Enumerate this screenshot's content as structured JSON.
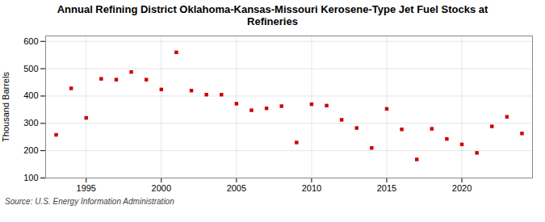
{
  "chart_data": {
    "type": "scatter",
    "title": "Annual Refining District Oklahoma-Kansas-Missouri Kerosene-Type Jet Fuel Stocks at\nRefineries",
    "ylabel": "Thousand Barrels",
    "caption": "Source: U.S. Energy Information Administration",
    "x": [
      1993,
      1994,
      1995,
      1996,
      1997,
      1998,
      1999,
      2000,
      2001,
      2002,
      2003,
      2004,
      2005,
      2006,
      2007,
      2008,
      2009,
      2010,
      2011,
      2012,
      2013,
      2014,
      2015,
      2016,
      2017,
      2018,
      2019,
      2020,
      2021,
      2022,
      2023,
      2024
    ],
    "values": [
      258,
      428,
      320,
      463,
      460,
      488,
      460,
      424,
      560,
      420,
      405,
      405,
      372,
      348,
      355,
      363,
      230,
      370,
      365,
      313,
      283,
      210,
      353,
      278,
      168,
      280,
      243,
      223,
      192,
      289,
      324,
      263
    ],
    "color": "#cc0000",
    "marker": "square",
    "xlim": [
      1992.3,
      2024.7
    ],
    "xticks": [
      1995,
      2000,
      2005,
      2010,
      2015,
      2020
    ],
    "ylim": [
      100,
      620
    ],
    "yticks": [
      100,
      200,
      300,
      400,
      500,
      600
    ],
    "grid": true
  }
}
